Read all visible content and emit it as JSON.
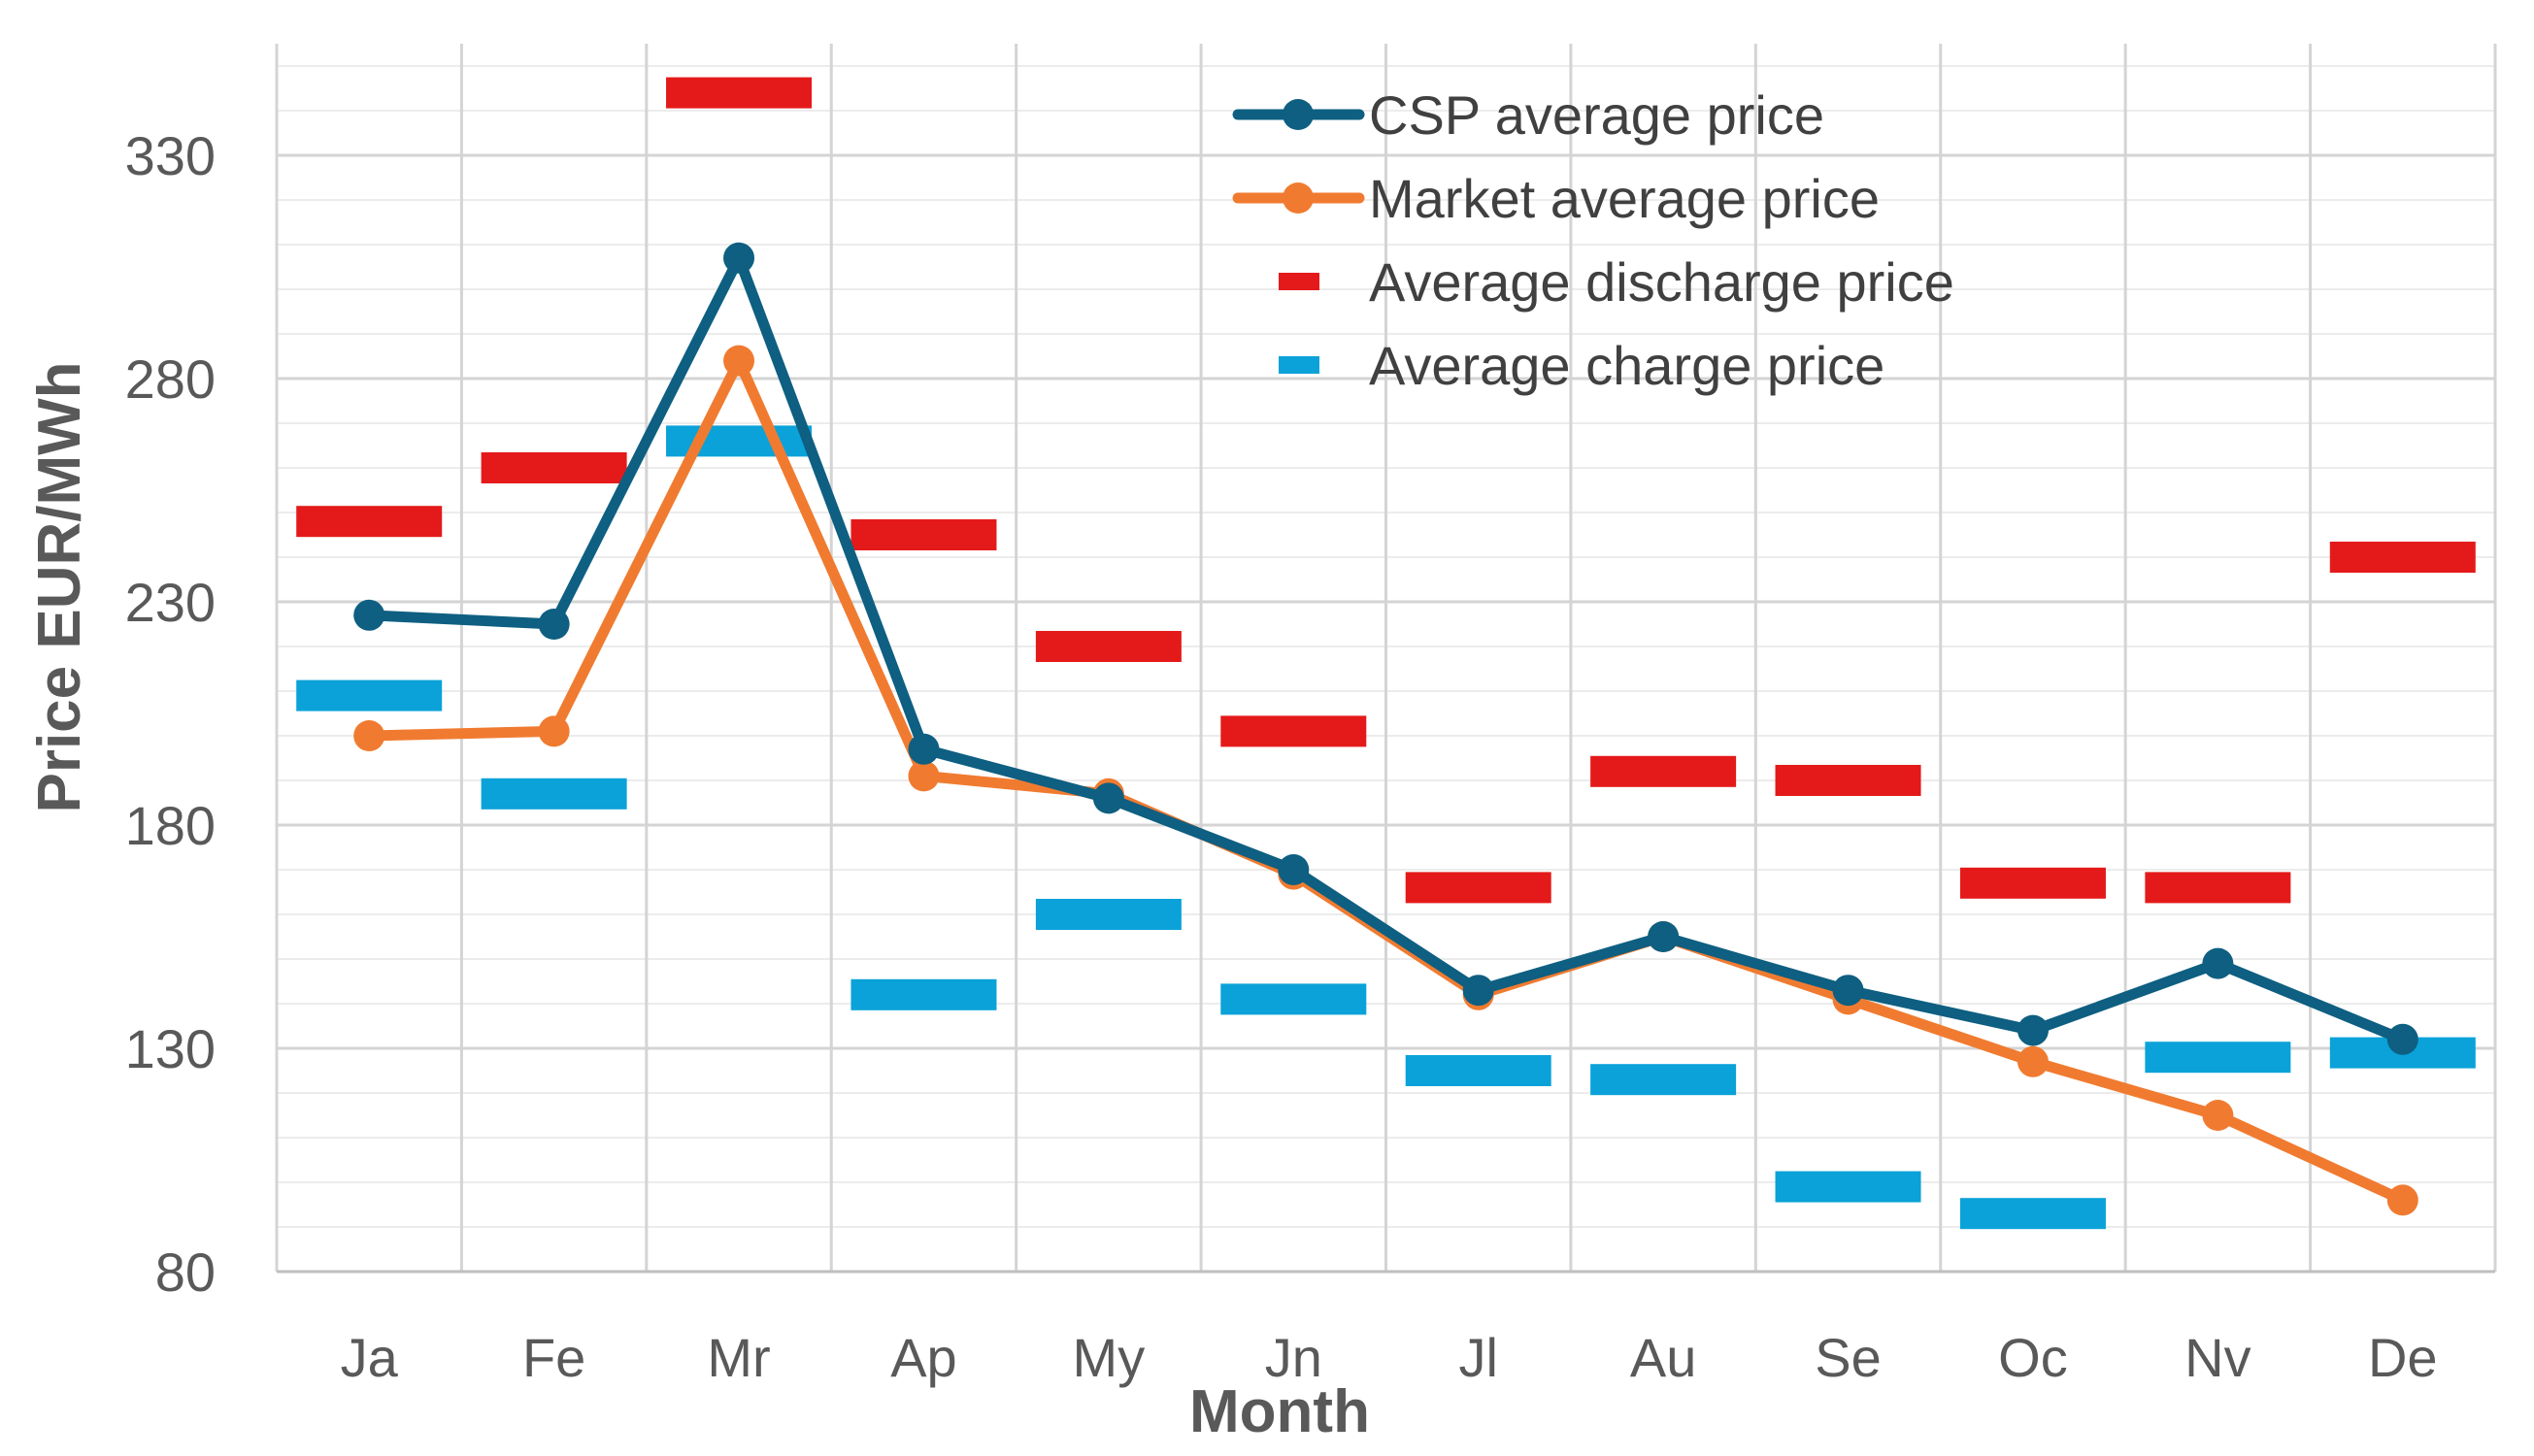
{
  "chart_data": {
    "type": "line",
    "title": "",
    "xlabel": "Month",
    "ylabel": "Price EUR/MWh",
    "categories": [
      "Ja",
      "Fe",
      "Mr",
      "Ap",
      "My",
      "Jn",
      "Jl",
      "Au",
      "Se",
      "Oc",
      "Nv",
      "De"
    ],
    "yticks": [
      "80",
      "130",
      "180",
      "230",
      "280",
      "330"
    ],
    "ylim": [
      80,
      355
    ],
    "grid": true,
    "legend_position": "top-right",
    "series": [
      {
        "name": "CSP average price",
        "style": "line-marker",
        "color": "#0e5f81",
        "values": [
          227,
          225,
          307,
          197,
          186,
          170,
          143,
          155,
          143,
          134,
          149,
          132
        ]
      },
      {
        "name": "Market average price",
        "style": "line-marker",
        "color": "#f07b30",
        "values": [
          200,
          201,
          284,
          191,
          187,
          169,
          142,
          155,
          141,
          127,
          115,
          96
        ]
      },
      {
        "name": "Average discharge price",
        "style": "dash",
        "color": "#e41a1a",
        "values": [
          248,
          260,
          344,
          245,
          220,
          201,
          166,
          192,
          190,
          167,
          166,
          240
        ]
      },
      {
        "name": "Average charge price",
        "style": "dash",
        "color": "#0aa2d8",
        "values": [
          209,
          187,
          266,
          142,
          160,
          141,
          125,
          123,
          99,
          93,
          128,
          129
        ]
      }
    ]
  }
}
